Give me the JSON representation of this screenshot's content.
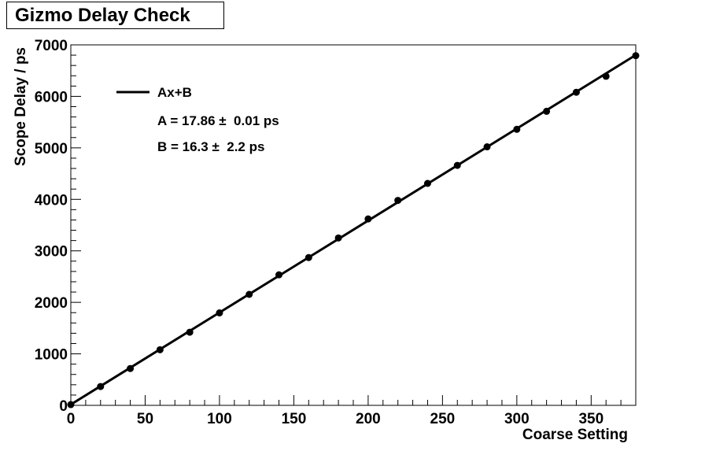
{
  "title": "Gizmo Delay Check",
  "chart_data": {
    "type": "scatter",
    "xlabel": "Coarse Setting",
    "ylabel": "Scope Delay / ps",
    "xlim": [
      0,
      380
    ],
    "ylim": [
      0,
      7000
    ],
    "x_ticks": [
      "0",
      "50",
      "100",
      "150",
      "200",
      "250",
      "300",
      "350"
    ],
    "y_ticks": [
      "0",
      "1000",
      "2000",
      "3000",
      "4000",
      "5000",
      "6000",
      "7000"
    ],
    "x_tick_values": [
      0,
      50,
      100,
      150,
      200,
      250,
      300,
      350
    ],
    "y_tick_values": [
      0,
      1000,
      2000,
      3000,
      4000,
      5000,
      6000,
      7000
    ],
    "series": [
      {
        "x": [
          0,
          20,
          40,
          60,
          80,
          100,
          120,
          140,
          160,
          180,
          200,
          220,
          240,
          260,
          280,
          300,
          320,
          340,
          360,
          380
        ],
        "y": [
          15,
          365,
          715,
          1080,
          1420,
          1795,
          2155,
          2535,
          2870,
          3250,
          3620,
          3980,
          4310,
          4660,
          5020,
          5360,
          5710,
          6080,
          6390,
          6790
        ]
      }
    ],
    "fit": {
      "label": "Ax+B",
      "A": 17.86,
      "B": 16.3,
      "line_a_text": "A = 17.86 ±  0.01 ps",
      "line_b_text": "B = 16.3 ±  2.2 ps"
    },
    "grid": false,
    "legend_position": "top-left"
  }
}
